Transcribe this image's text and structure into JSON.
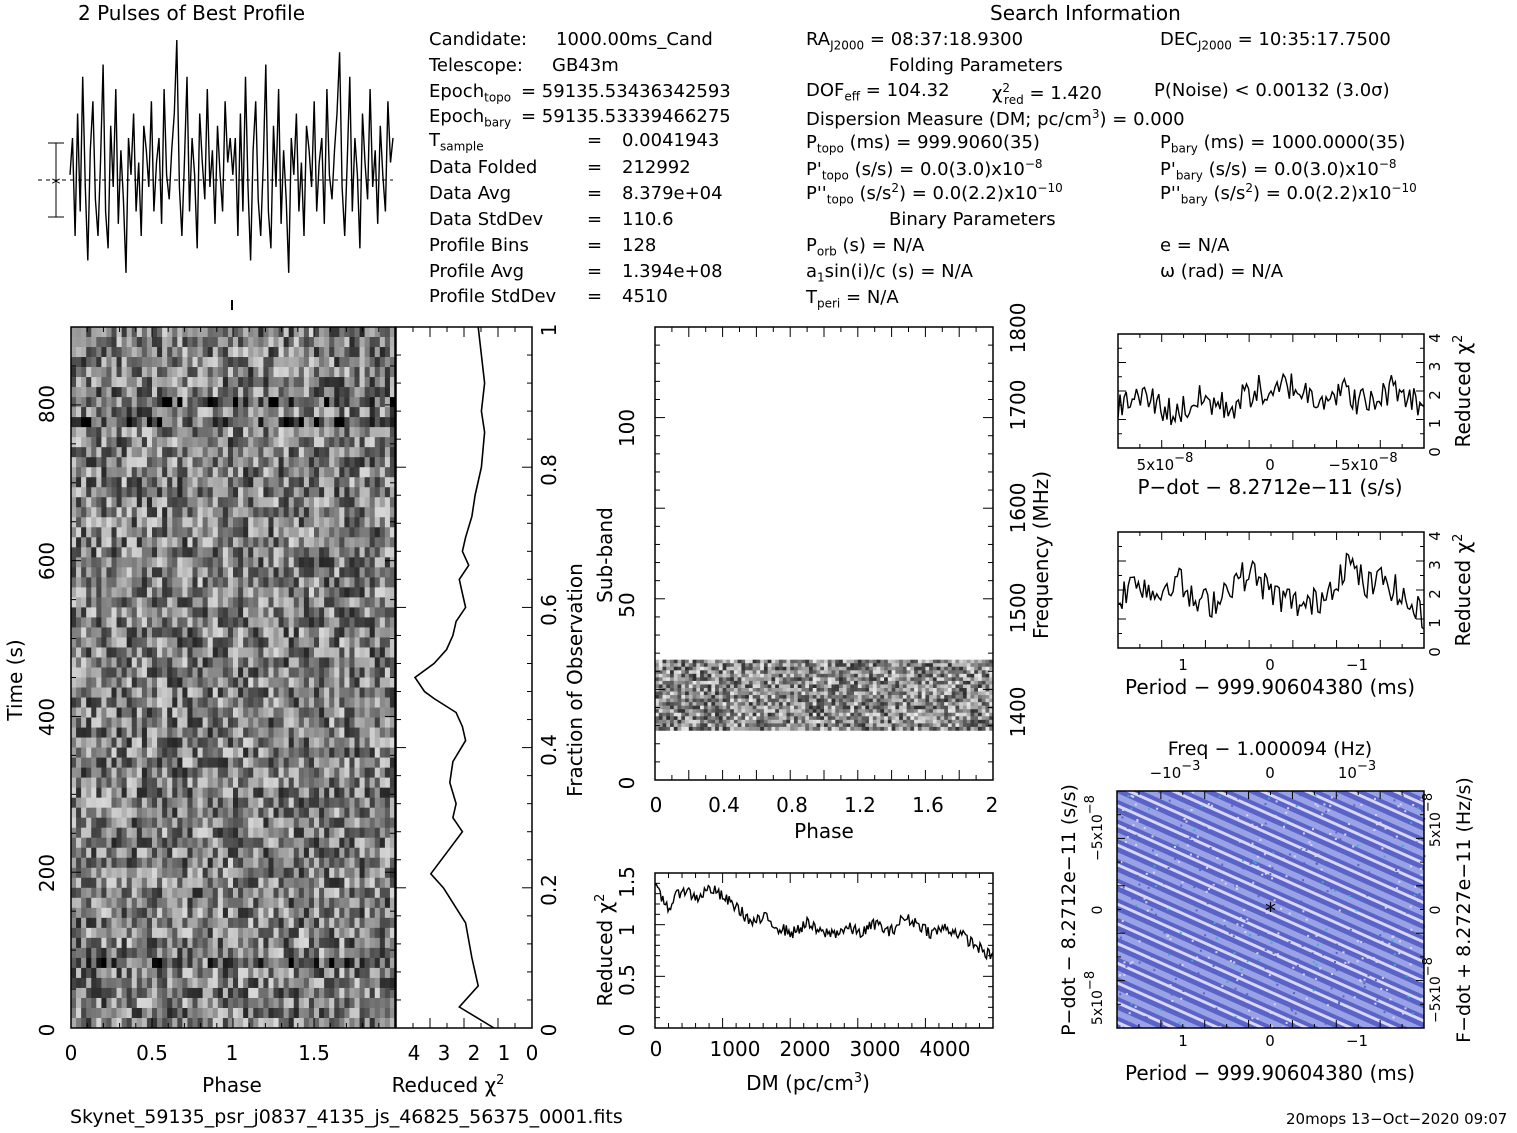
{
  "header": {
    "profile_title": "2 Pulses of Best Profile",
    "search_title": "Search Information"
  },
  "candidate_info": [
    {
      "label": "Candidate:",
      "value": "1000.00ms_Cand"
    },
    {
      "label": "Telescope:",
      "value": "GB43m"
    },
    {
      "label": "Epoch",
      "sub": "topo",
      "value": "= 59135.53436342593"
    },
    {
      "label": "Epoch",
      "sub": "bary",
      "value": "= 59135.53339466275"
    },
    {
      "label": "T",
      "sub": "sample",
      "value": "0.0041943"
    },
    {
      "label": "Data Folded",
      "value": "212992"
    },
    {
      "label": "Data Avg",
      "value": "8.379e+04"
    },
    {
      "label": "Data StdDev",
      "value": "110.6"
    },
    {
      "label": "Profile Bins",
      "value": "128"
    },
    {
      "label": "Profile Avg",
      "value": "1.394e+08"
    },
    {
      "label": "Profile StdDev",
      "value": "4510"
    }
  ],
  "equals_sign": "=",
  "search_info": {
    "ra": {
      "label": "RA",
      "sub": "J2000",
      "value": "= 08:37:18.9300"
    },
    "dec": {
      "label": "DEC",
      "sub": "J2000",
      "value": "= 10:35:17.7500"
    },
    "folding_header": "Folding Parameters",
    "dof": {
      "label": "DOF",
      "sub": "eff",
      "value": "= 104.32"
    },
    "chi": {
      "label": "χ",
      "sup": "2",
      "sub": "red",
      "value": "= 1.420"
    },
    "pnoise": "P(Noise) < 0.00132   (3.0σ)",
    "dm_line": "Dispersion Measure (DM; pc/cm",
    "dm_sup": "3",
    "dm_val": ") = 0.000",
    "ptopo": {
      "label": "P",
      "sub": "topo",
      "value": "(ms)  =  999.9060(35)"
    },
    "pbary": {
      "label": "P",
      "sub": "bary",
      "value": "(ms)  =  1000.0000(35)"
    },
    "pdtopo": {
      "label": "P'",
      "sub": "topo",
      "value": "(s/s) = 0.0(3.0)x10",
      "sup": "−8"
    },
    "pdbary": {
      "label": "P'",
      "sub": "bary",
      "value": "(s/s) = 0.0(3.0)x10",
      "sup": "−8"
    },
    "pddtopo": {
      "label": "P''",
      "sub": "topo",
      "value": "(s/s",
      "sup2": "2",
      "value2": ") = 0.0(2.2)x10",
      "sup": "−10"
    },
    "pddbary": {
      "label": "P''",
      "sub": "bary",
      "value": "(s/s",
      "sup2": "2",
      "value2": ") = 0.0(2.2)x10",
      "sup": "−10"
    },
    "binary_header": "Binary Parameters",
    "porb": {
      "label": "P",
      "sub": "orb",
      "value": "(s) = N/A"
    },
    "ecc": "e = N/A",
    "a1": {
      "label": "a",
      "sub": "1",
      "value": "sin(i)/c (s) = N/A"
    },
    "omega": "ω (rad) = N/A",
    "tperi": {
      "label": "T",
      "sub": "peri",
      "value": "= N/A"
    }
  },
  "footer": {
    "filename": "Skynet_59135_psr_j0837_4135_js_46825_56375_0001.fits",
    "stamp": "20mops 13−Oct−2020 09:07"
  },
  "chart_data": [
    {
      "type": "line",
      "id": "best-profile",
      "title": "2 Pulses of Best Profile",
      "xlim": [
        0,
        2
      ],
      "values": [
        0.45,
        0.6,
        0.2,
        0.7,
        0.3,
        0.85,
        0.4,
        0.1,
        0.55,
        0.75,
        0.35,
        0.2,
        0.5,
        0.9,
        0.3,
        0.15,
        0.65,
        0.4,
        0.8,
        0.25,
        0.55,
        0.35,
        0.05,
        0.6,
        0.45,
        0.7,
        0.3,
        0.5,
        0.2,
        0.65,
        0.55,
        0.4,
        0.75,
        0.3,
        0.5,
        0.6,
        0.25,
        0.8,
        0.45,
        0.35,
        0.55,
        0.7,
        1.0,
        0.4,
        0.2,
        0.5,
        0.85,
        0.3,
        0.6,
        0.45,
        0.15,
        0.7,
        0.5,
        0.35,
        0.8,
        0.4,
        0.55,
        0.25,
        0.65,
        0.45,
        0.3,
        0.75,
        0.5,
        0.6,
        0.45,
        0.6,
        0.2,
        0.7,
        0.3,
        0.85,
        0.4,
        0.1,
        0.55,
        0.75,
        0.35,
        0.2,
        0.5,
        0.9,
        0.3,
        0.15,
        0.65,
        0.4,
        0.8,
        0.25,
        0.55,
        0.35,
        0.05,
        0.6,
        0.45,
        0.7,
        0.3,
        0.5,
        0.2,
        0.65,
        0.55,
        0.4,
        0.75,
        0.3,
        0.5,
        0.6,
        0.25,
        0.8,
        0.45,
        0.35,
        0.55,
        0.7,
        0.95,
        0.4,
        0.2,
        0.5,
        0.85,
        0.3,
        0.6,
        0.45,
        0.15,
        0.7,
        0.5,
        0.35,
        0.8,
        0.4,
        0.55,
        0.25,
        0.65,
        0.45,
        0.3,
        0.75,
        0.5,
        0.6
      ],
      "error_bar": "1 sigma"
    },
    {
      "type": "heatmap",
      "id": "time-phase",
      "xlabel": "Phase",
      "ylabel": "Time (s)",
      "xlim": [
        0,
        2
      ],
      "ylim": [
        0,
        900
      ],
      "x_ticks": [
        "0",
        "0.5",
        "1",
        "1.5"
      ],
      "y_ticks": [
        "0",
        "200",
        "400",
        "600",
        "800"
      ]
    },
    {
      "type": "line",
      "id": "time-chi2",
      "xlabel": "Reduced χ",
      "xlabel_sup": "2",
      "ylabel": "Fraction of Observation",
      "xlim": [
        4.3,
        0
      ],
      "ylim": [
        0,
        1
      ],
      "x_ticks": [
        "4",
        "3",
        "2",
        "1",
        "0"
      ],
      "y_ticks": [
        "0",
        "0.2",
        "0.4",
        "0.6",
        "0.8",
        "1"
      ],
      "x": [
        1.2,
        2.3,
        1.7,
        1.9,
        2.1,
        2.8,
        3.2,
        2.7,
        2.2,
        2.5,
        2.4,
        2.6,
        2.5,
        2.1,
        2.2,
        2.4,
        3.1,
        3.4,
        3.7,
        3.1,
        2.7,
        2.5,
        2.4,
        2.1,
        2.2,
        2.3,
        2.0,
        2.2,
        2.1,
        1.9,
        1.8,
        1.6,
        1.5,
        1.6,
        1.5,
        1.6,
        1.7
      ],
      "y": [
        0.0,
        0.03,
        0.06,
        0.1,
        0.15,
        0.2,
        0.22,
        0.25,
        0.28,
        0.3,
        0.32,
        0.35,
        0.38,
        0.41,
        0.43,
        0.45,
        0.47,
        0.48,
        0.5,
        0.52,
        0.54,
        0.56,
        0.58,
        0.6,
        0.62,
        0.64,
        0.66,
        0.68,
        0.7,
        0.73,
        0.76,
        0.8,
        0.85,
        0.88,
        0.92,
        0.96,
        1.0
      ]
    },
    {
      "type": "heatmap",
      "id": "subband-phase",
      "xlabel": "Phase",
      "ylabel": "Sub-band",
      "y2label": "Frequency (MHz)",
      "xlim": [
        0,
        2
      ],
      "ylim": [
        0,
        128
      ],
      "x_ticks": [
        "0",
        "0.4",
        "0.8",
        "1.2",
        "1.6",
        "2"
      ],
      "y_ticks": [
        "0",
        "50",
        "100"
      ],
      "y2_ticks": [
        "1400",
        "1500",
        "1600",
        "1700",
        "1800"
      ],
      "filled_subbands": [
        14,
        34
      ]
    },
    {
      "type": "line",
      "id": "dm-chi2",
      "xlabel": "DM (pc/cm",
      "xlabel_sup": "3",
      "xlabel_end": ")",
      "ylabel": "Reduced χ",
      "ylabel_sup": "2",
      "xlim": [
        0,
        4900
      ],
      "ylim": [
        0,
        1.55
      ],
      "x_ticks": [
        "0",
        "1000",
        "2000",
        "3000",
        "4000"
      ],
      "y_ticks": [
        "0",
        "0.5",
        "1",
        "1.5"
      ],
      "x": [
        0,
        200,
        400,
        600,
        800,
        1000,
        1200,
        1400,
        1600,
        1800,
        2000,
        2200,
        2400,
        2600,
        2800,
        3000,
        3200,
        3400,
        3600,
        3800,
        4000,
        4200,
        4400,
        4600,
        4800,
        4900
      ],
      "y": [
        1.4,
        1.2,
        1.4,
        1.3,
        1.4,
        1.3,
        1.2,
        1.05,
        1.1,
        1.0,
        0.95,
        1.05,
        0.95,
        0.95,
        1.0,
        0.95,
        1.05,
        0.95,
        1.1,
        1.05,
        0.95,
        1.0,
        0.95,
        0.85,
        0.75,
        0.7
      ]
    },
    {
      "type": "line",
      "id": "pdot-chi2",
      "xlabel": "P−dot − 8.2712e−11 (s/s)",
      "ylabel": "Reduced χ",
      "ylabel_sup": "2",
      "xlim": [
        1.1e-07,
        -1.1e-07
      ],
      "ylim": [
        0,
        4
      ],
      "x_ticks": [
        "5x10",
        "0",
        "−5x10"
      ],
      "x_tick_sup": "−8",
      "y_ticks": [
        "0",
        "1",
        "2",
        "3",
        "4"
      ],
      "x": [
        1.1e-07,
        9e-08,
        7e-08,
        5e-08,
        3e-08,
        1e-08,
        0,
        -1e-08,
        -3e-08,
        -5e-08,
        -7e-08,
        -9e-08,
        -1.1e-07
      ],
      "y": [
        1.5,
        1.8,
        1.2,
        1.7,
        1.4,
        2.1,
        1.6,
        2.3,
        1.8,
        2.0,
        1.5,
        2.2,
        1.4
      ]
    },
    {
      "type": "line",
      "id": "period-chi2",
      "xlabel": "Period − 999.90604380 (ms)",
      "ylabel": "Reduced χ",
      "ylabel_sup": "2",
      "xlim": [
        1.6,
        -1.6
      ],
      "ylim": [
        0,
        4
      ],
      "x_ticks": [
        "1",
        "0",
        "−1"
      ],
      "y_ticks": [
        "0",
        "1",
        "2",
        "3",
        "4"
      ],
      "x": [
        1.6,
        1.4,
        1.2,
        1.0,
        0.8,
        0.6,
        0.4,
        0.2,
        0,
        -0.2,
        -0.4,
        -0.6,
        -0.8,
        -1.0,
        -1.2,
        -1.4,
        -1.6
      ],
      "y": [
        1.7,
        2.4,
        1.8,
        2.5,
        1.5,
        1.6,
        2.3,
        2.6,
        1.9,
        1.6,
        1.4,
        2.0,
        3.0,
        2.1,
        2.4,
        1.6,
        1.1
      ]
    },
    {
      "type": "heatmap",
      "id": "period-pdot",
      "title": "Freq − 1.000094 (Hz)",
      "xlabel": "Period − 999.90604380 (ms)",
      "ylabel": "P−dot − 8.2712e−11 (s/s)",
      "y2label": "F−dot + 8.2727e−11 (Hz/s)",
      "x_ticks": [
        "1",
        "0",
        "−1"
      ],
      "x2_ticks": [
        "−10",
        "0",
        "10"
      ],
      "x2_tick_sups": [
        "−3",
        "",
        "−3"
      ],
      "y_ticks": [
        "5x10",
        "0",
        "−5x10"
      ],
      "y2_ticks": [
        "−5x10",
        "0",
        "5x10"
      ],
      "tick_sup": "−8",
      "colors": {
        "low": "#5a63c8",
        "mid": "#9aa2e6",
        "high": "#d8d6f4",
        "accent": "#2fb4c8"
      },
      "best_fit": [
        0,
        0
      ]
    }
  ]
}
